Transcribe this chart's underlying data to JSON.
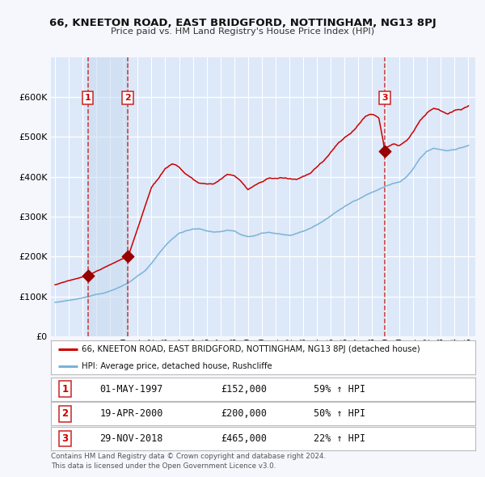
{
  "title": "66, KNEETON ROAD, EAST BRIDGFORD, NOTTINGHAM, NG13 8PJ",
  "subtitle": "Price paid vs. HM Land Registry's House Price Index (HPI)",
  "bg_color": "#dde8f8",
  "grid_color": "#ffffff",
  "red_line_color": "#cc0000",
  "blue_line_color": "#7ab3d8",
  "sale_marker_color": "#990000",
  "ylim": [
    0,
    700000
  ],
  "yticks": [
    0,
    100000,
    200000,
    300000,
    400000,
    500000,
    600000
  ],
  "ytick_labels": [
    "£0",
    "£100K",
    "£200K",
    "£300K",
    "£400K",
    "£500K",
    "£600K"
  ],
  "sales": [
    {
      "num": 1,
      "date_x": 1997.37,
      "price": 152000,
      "label": "01-MAY-1997",
      "price_str": "£152,000",
      "hpi_str": "59% ↑ HPI"
    },
    {
      "num": 2,
      "date_x": 2000.3,
      "price": 200000,
      "label": "19-APR-2000",
      "price_str": "£200,000",
      "hpi_str": "50% ↑ HPI"
    },
    {
      "num": 3,
      "date_x": 2018.92,
      "price": 465000,
      "label": "29-NOV-2018",
      "price_str": "£465,000",
      "hpi_str": "22% ↑ HPI"
    }
  ],
  "legend_red": "66, KNEETON ROAD, EAST BRIDGFORD, NOTTINGHAM, NG13 8PJ (detached house)",
  "legend_blue": "HPI: Average price, detached house, Rushcliffe",
  "footer": "Contains HM Land Registry data © Crown copyright and database right 2024.\nThis data is licensed under the Open Government Licence v3.0.",
  "xlim_start": 1994.7,
  "xlim_end": 2025.5
}
